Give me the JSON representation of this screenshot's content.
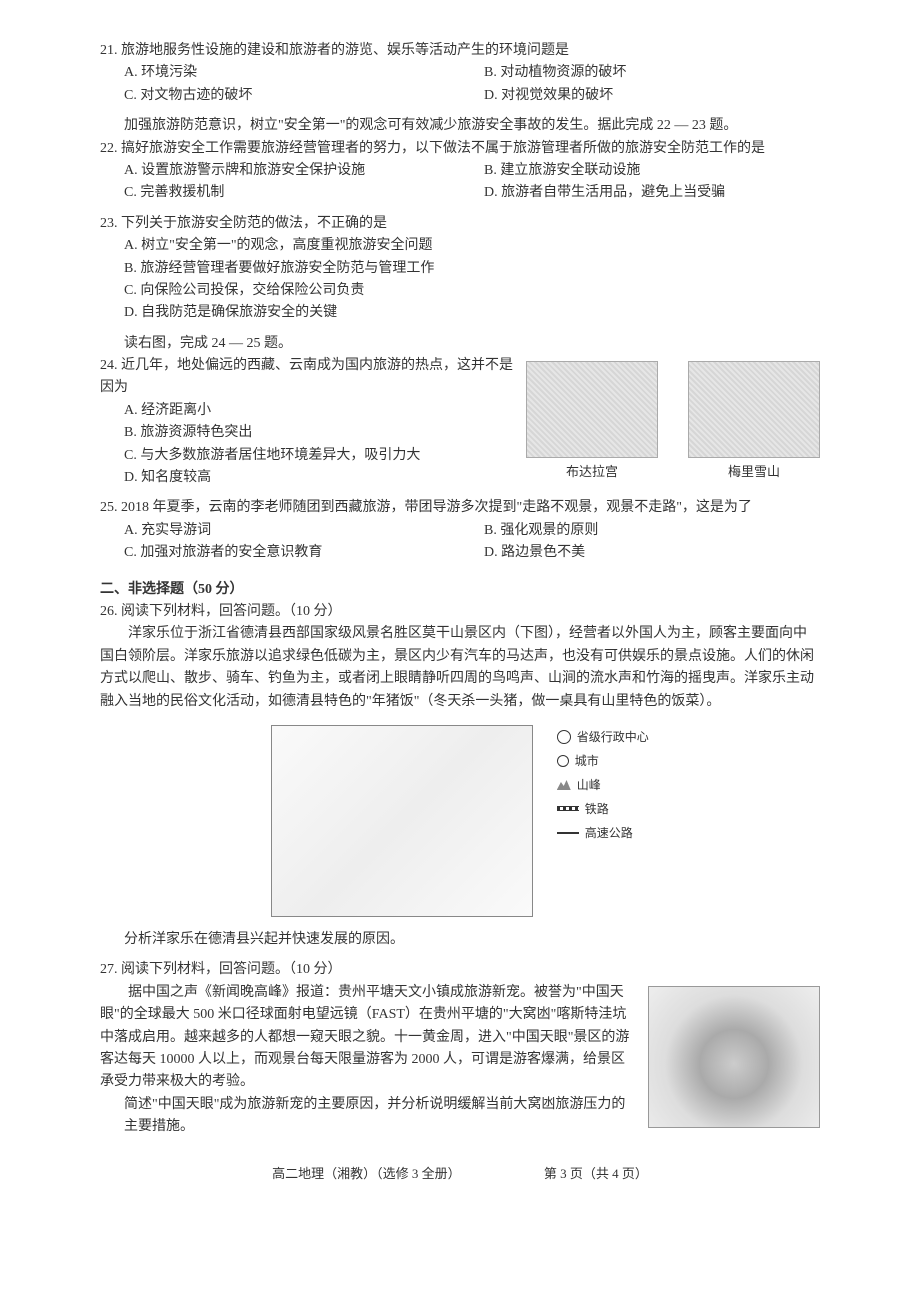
{
  "q21": {
    "stem": "21. 旅游地服务性设施的建设和旅游者的游览、娱乐等活动产生的环境问题是",
    "A": "A. 环境污染",
    "B": "B. 对动植物资源的破坏",
    "C": "C. 对文物古迹的破坏",
    "D": "D. 对视觉效果的破坏"
  },
  "ctx22": "加强旅游防范意识，树立\"安全第一\"的观念可有效减少旅游安全事故的发生。据此完成 22 — 23 题。",
  "q22": {
    "stem": "22. 搞好旅游安全工作需要旅游经营管理者的努力，以下做法不属于旅游管理者所做的旅游安全防范工作的是",
    "A": "A. 设置旅游警示牌和旅游安全保护设施",
    "B": "B. 建立旅游安全联动设施",
    "C": "C. 完善救援机制",
    "D": "D. 旅游者自带生活用品，避免上当受骗"
  },
  "q23": {
    "stem": "23. 下列关于旅游安全防范的做法，不正确的是",
    "A": "A. 树立\"安全第一\"的观念，高度重视旅游安全问题",
    "B": "B. 旅游经营管理者要做好旅游安全防范与管理工作",
    "C": "C. 向保险公司投保，交给保险公司负责",
    "D": "D. 自我防范是确保旅游安全的关键"
  },
  "ctx24": "读右图，完成 24 — 25 题。",
  "q24": {
    "stem": "24. 近几年，地处偏远的西藏、云南成为国内旅游的热点，这并不是因为",
    "A": "A. 经济距离小",
    "B": "B. 旅游资源特色突出",
    "C": "C. 与大多数旅游者居住地环境差异大，吸引力大",
    "D": "D. 知名度较高"
  },
  "img24": {
    "cap1": "布达拉宫",
    "cap2": "梅里雪山"
  },
  "q25": {
    "stem": "25. 2018 年夏季，云南的李老师随团到西藏旅游，带团导游多次提到\"走路不观景，观景不走路\"，这是为了",
    "A": "A. 充实导游词",
    "B": "B. 强化观景的原则",
    "C": "C. 加强对旅游者的安全意识教育",
    "D": "D. 路边景色不美"
  },
  "sec2": "二、非选择题（50 分）",
  "q26": {
    "title": "26. 阅读下列材料，回答问题。（10 分）",
    "p1": "洋家乐位于浙江省德清县西部国家级风景名胜区莫干山景区内（下图），经营者以外国人为主，顾客主要面向中国白领阶层。洋家乐旅游以追求绿色低碳为主，景区内少有汽车的马达声，也没有可供娱乐的景点设施。人们的休闲方式以爬山、散步、骑车、钓鱼为主，或者闭上眼睛静听四周的鸟鸣声、山涧的流水声和竹海的摇曳声。洋家乐主动融入当地的民俗文化活动，如德清县特色的\"年猪饭\"（冬天杀一头猪，做一桌具有山里特色的饭菜）。",
    "task": "分析洋家乐在德清县兴起并快速发展的原因。"
  },
  "legend": {
    "l1": "省级行政中心",
    "l2": "城市",
    "l3": "山峰",
    "l4": "铁路",
    "l5": "高速公路"
  },
  "q27": {
    "title": "27. 阅读下列材料，回答问题。（10 分）",
    "p1": "据中国之声《新闻晚高峰》报道：贵州平塘天文小镇成旅游新宠。被誉为\"中国天眼\"的全球最大 500 米口径球面射电望远镜（FAST）在贵州平塘的\"大窝凼\"喀斯特洼坑中落成启用。越来越多的人都想一窥天眼之貌。十一黄金周，进入\"中国天眼\"景区的游客达每天 10000 人以上，而观景台每天限量游客为 2000 人，可谓是游客爆满，给景区承受力带来极大的考验。",
    "task": "简述\"中国天眼\"成为旅游新宠的主要原因，并分析说明缓解当前大窝凼旅游压力的主要措施。"
  },
  "footer": {
    "left": "高二地理（湘教）（选修 3 全册）",
    "right": "第 3 页（共 4 页）"
  }
}
